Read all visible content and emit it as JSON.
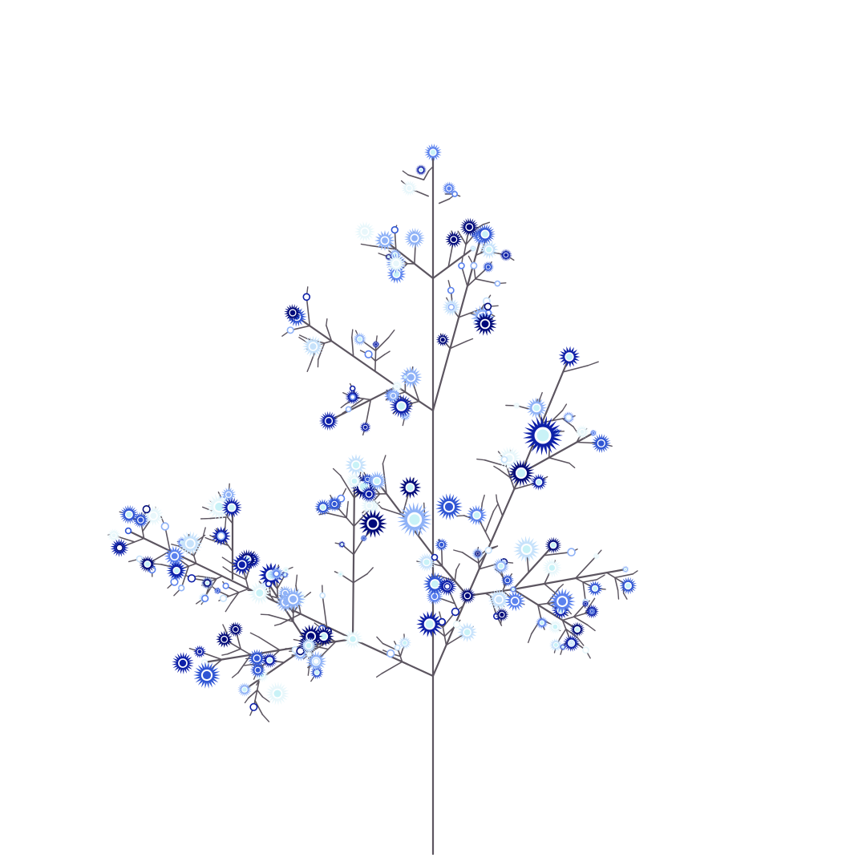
{
  "scene": {
    "subject": "branching-flower-tree-illustration",
    "background_color": "#ffffff",
    "branch_color": "#5c5560",
    "flower_palette": [
      "#000a7a",
      "#0d1fa8",
      "#2f55d4",
      "#5b82ee",
      "#8fb2f7",
      "#c7e2fb",
      "#e8f7fb"
    ],
    "flower_center_color": "#c9f2f7",
    "flower_ring_color": "#ffffff"
  }
}
